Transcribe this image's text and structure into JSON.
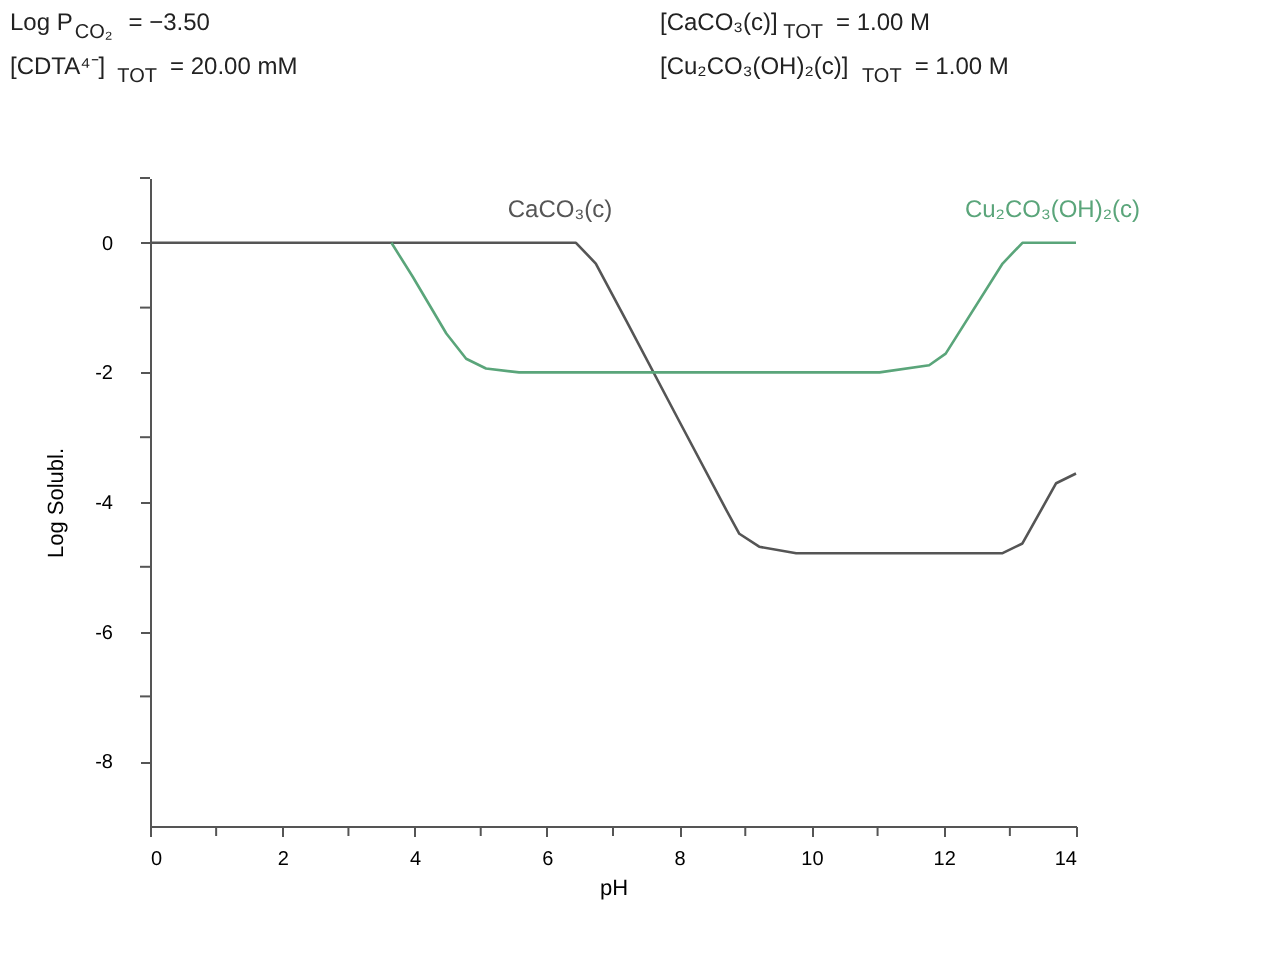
{
  "chart_data": {
    "type": "line",
    "xlabel": "pH",
    "ylabel": "Log Solubl.",
    "annotations": [
      "Log P$_{CO₂}$ = −3.50",
      "[CDTA⁴⁻]$_{TOT}$ = 20.00 mM",
      "[CaCO₃(c)]$_{TOT}$ = 1.00 M",
      "[Cu₂CO₃(OH)₂(c)]$_{TOT}$ = 1.00 M"
    ],
    "series": [
      {
        "name": "CaCO₃(c)",
        "color": "#555555",
        "x": [
          0,
          6.44,
          6.74,
          7.2,
          8.0,
          8.7,
          8.91,
          9.21,
          9.77,
          12.89,
          13.19,
          13.7,
          14.0
        ],
        "values": [
          0,
          0,
          -0.32,
          -1.2,
          -2.75,
          -4.1,
          -4.49,
          -4.69,
          -4.79,
          -4.79,
          -4.64,
          -3.71,
          -3.56
        ]
      },
      {
        "name": "Cu₂CO₃(OH)₂(c)",
        "color": "#5aa57a",
        "x": [
          3.65,
          3.97,
          4.48,
          4.78,
          5.08,
          5.58,
          11.03,
          11.78,
          12.03,
          12.89,
          13.19,
          14.0
        ],
        "values": [
          0,
          -0.52,
          -1.4,
          -1.79,
          -1.94,
          -2,
          -2,
          -1.89,
          -1.71,
          -0.32,
          0,
          0
        ]
      }
    ],
    "xlim": [
      0,
      14
    ],
    "ylim": [
      -9,
      1
    ],
    "xticks": [
      0,
      {
        "value": 1,
        "label": null
      },
      2,
      {
        "value": 3,
        "label": null
      },
      4,
      {
        "value": 5,
        "label": null
      },
      6,
      {
        "value": 7,
        "label": null
      },
      8,
      {
        "value": 9,
        "label": null
      },
      10,
      {
        "value": 11,
        "label": null
      },
      12,
      {
        "value": 13,
        "label": null
      },
      14
    ],
    "yticks": [
      -8,
      {
        "value": -7,
        "label": null
      },
      -6,
      {
        "value": -5,
        "label": null
      },
      -4,
      {
        "value": -3,
        "label": null
      },
      -2,
      {
        "value": -1,
        "label": null
      },
      0,
      {
        "value": 1,
        "label": null
      }
    ],
    "grid": false,
    "marker": "none",
    "line_style": "solid"
  }
}
